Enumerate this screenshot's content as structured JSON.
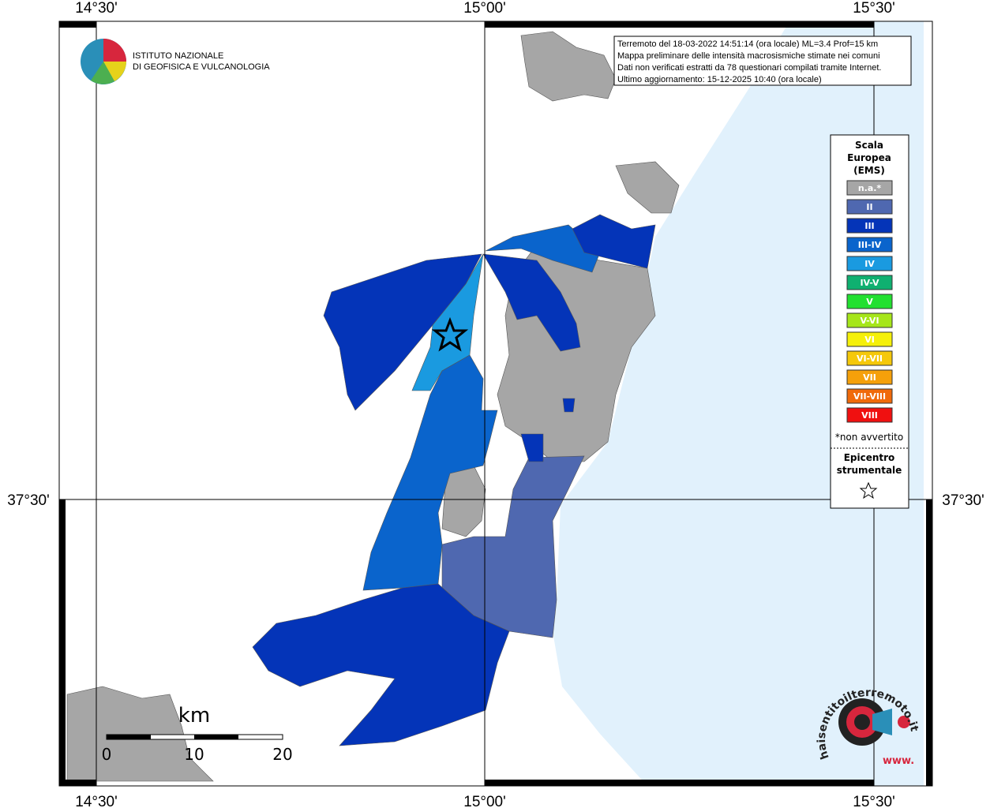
{
  "axes": {
    "top": [
      "14°30'",
      "15°00'",
      "15°30'"
    ],
    "bottom": [
      "14°30'",
      "15°00'",
      "15°30'"
    ],
    "left": [
      "37°30'"
    ],
    "right": [
      "37°30'"
    ]
  },
  "logo": {
    "lines": [
      "ISTITUTO NAZIONALE",
      "DI GEOFISICA E VULCANOLOGIA"
    ]
  },
  "info": {
    "lines": [
      "Terremoto del 18-03-2022 14:51:14 (ora locale) ML=3.4 Prof=15 km",
      "Mappa preliminare delle intensità macrosismiche stimate nei comuni",
      "Dati non verificati estratti da 78 questionari compilati tramite Internet.",
      "Ultimo aggiornamento: 15-12-2025 10:40 (ora locale)"
    ]
  },
  "legend": {
    "title": [
      "Scala",
      "Europea",
      "(EMS)"
    ],
    "items": [
      {
        "label": "n.a.*",
        "color": "#a6a6a6"
      },
      {
        "label": "II",
        "color": "#4f68b0"
      },
      {
        "label": "III",
        "color": "#0434b8"
      },
      {
        "label": "III-IV",
        "color": "#0a64cc"
      },
      {
        "label": "IV",
        "color": "#1a9ae0"
      },
      {
        "label": "IV-V",
        "color": "#0fb070"
      },
      {
        "label": "V",
        "color": "#22e030"
      },
      {
        "label": "V-VI",
        "color": "#a6e61a"
      },
      {
        "label": "VI",
        "color": "#f5f00a"
      },
      {
        "label": "VI-VII",
        "color": "#f5c80a"
      },
      {
        "label": "VII",
        "color": "#f5a00a"
      },
      {
        "label": "VII-VIII",
        "color": "#f06a0a"
      },
      {
        "label": "VIII",
        "color": "#f01010"
      }
    ],
    "note": "*non avvertito",
    "epicentre": [
      "Epicentro",
      "strumentale"
    ]
  },
  "scale_bar": {
    "unit": "km",
    "labels": [
      "0",
      "10",
      "20"
    ]
  },
  "badge": {
    "arc": "haisentitoilterremoto.it",
    "prefix": "www."
  }
}
